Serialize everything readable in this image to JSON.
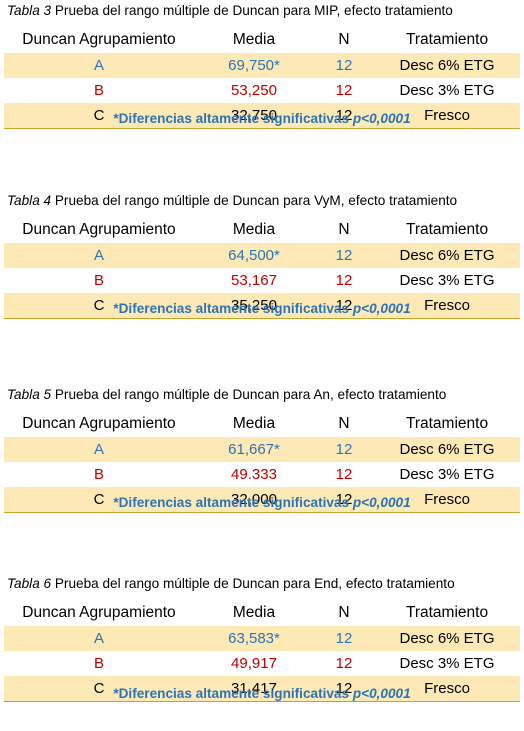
{
  "columns": [
    "Duncan Agrupamiento",
    "Media",
    "N",
    "Tratamiento"
  ],
  "note": {
    "text": "*Diferencias altamente significativas ",
    "p": "p<0,0001"
  },
  "tables": [
    {
      "label": "Tabla 3",
      "title": " Prueba del rango múltiple de Duncan para MIP, efecto tratamiento",
      "rows": [
        {
          "group": "A",
          "media": "69,750*",
          "n": "12",
          "trat": "Desc 6% ETG"
        },
        {
          "group": "B",
          "media": "53,250",
          "n": "12",
          "trat": "Desc 3% ETG"
        },
        {
          "group": "C",
          "media": "32,750",
          "n": "12",
          "trat": "Fresco"
        }
      ]
    },
    {
      "label": "Tabla 4",
      "title": " Prueba del rango múltiple de Duncan para VyM, efecto tratamiento",
      "rows": [
        {
          "group": "A",
          "media": "64,500*",
          "n": "12",
          "trat": "Desc 6% ETG"
        },
        {
          "group": "B",
          "media": "53,167",
          "n": "12",
          "trat": "Desc 3% ETG"
        },
        {
          "group": "C",
          "media": "35,250",
          "n": "12",
          "trat": "Fresco"
        }
      ]
    },
    {
      "label": "Tabla 5",
      "title": " Prueba del rango múltiple de Duncan para An, efecto tratamiento",
      "rows": [
        {
          "group": "A",
          "media": "61,667*",
          "n": "12",
          "trat": "Desc 6% ETG"
        },
        {
          "group": "B",
          "media": "49.333",
          "n": "12",
          "trat": "Desc 3% ETG"
        },
        {
          "group": "C",
          "media": "32,000",
          "n": "12",
          "trat": "Fresco"
        }
      ]
    },
    {
      "label": "Tabla 6",
      "title": " Prueba del rango múltiple de Duncan para End, efecto tratamiento",
      "rows": [
        {
          "group": "A",
          "media": "63,583*",
          "n": "12",
          "trat": "Desc 6% ETG"
        },
        {
          "group": "B",
          "media": "49,917",
          "n": "12",
          "trat": "Desc 3% ETG"
        },
        {
          "group": "C",
          "media": "31,417",
          "n": "12",
          "trat": "Fresco"
        }
      ]
    }
  ],
  "colors": {
    "row_highlight": "#FDE9B6",
    "rule": "#C9A227",
    "blue": "#2E74B5",
    "red": "#C00000"
  }
}
